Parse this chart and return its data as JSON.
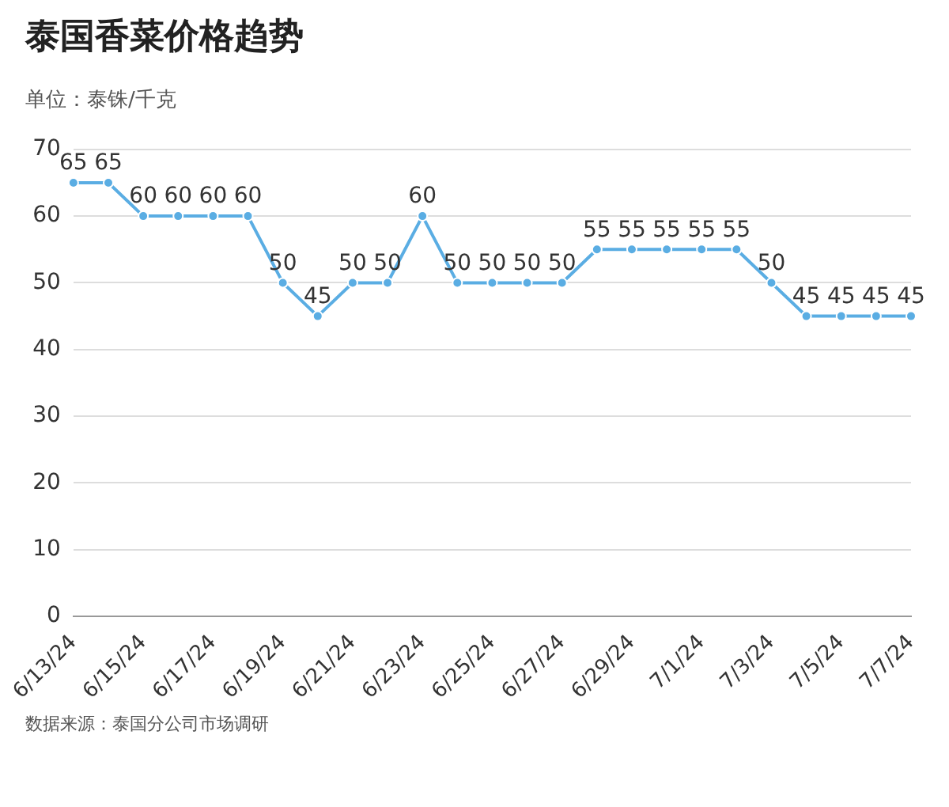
{
  "chart_data": {
    "type": "line",
    "title": "泰国香菜价格趋势",
    "subtitle": "单位：泰铢/千克",
    "categories": [
      "6/13/24",
      null,
      "6/15/24",
      null,
      "6/17/24",
      null,
      "6/19/24",
      null,
      "6/21/24",
      null,
      "6/23/24",
      null,
      "6/25/24",
      null,
      "6/27/24",
      null,
      "6/29/24",
      null,
      "7/1/24",
      null,
      "7/3/24",
      null,
      "7/5/24",
      null,
      "7/7/24"
    ],
    "series": [
      {
        "color": "#5aade3",
        "values": [
          65,
          65,
          60,
          60,
          60,
          60,
          50,
          45,
          50,
          50,
          60,
          50,
          50,
          50,
          50,
          55,
          55,
          55,
          55,
          55,
          50,
          45,
          45,
          45,
          45
        ]
      }
    ],
    "ylim": [
      0,
      70
    ],
    "yticks": [
      0,
      10,
      20,
      30,
      40,
      50,
      60,
      70
    ],
    "grid": "y",
    "marker": "circle",
    "line_style": "solid",
    "legend": false,
    "data_labels": true,
    "annotations": [
      "数据来源：泰国分公司市场调研"
    ]
  }
}
